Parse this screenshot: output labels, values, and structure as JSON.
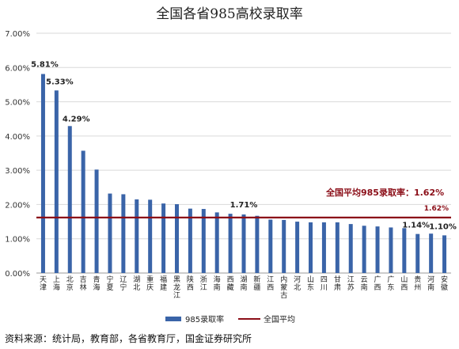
{
  "chart_data": {
    "type": "bar",
    "title": "全国各省985高校录取率",
    "categories": [
      "天津",
      "上海",
      "北京",
      "吉林",
      "青海",
      "宁夏",
      "辽宁",
      "湖北",
      "重庆",
      "福建",
      "黑龙江",
      "陕西",
      "浙江",
      "海南",
      "西藏",
      "湖南",
      "新疆",
      "江西",
      "内蒙古",
      "河北",
      "山东",
      "四川",
      "甘肃",
      "江苏",
      "云南",
      "广西",
      "广东",
      "山西",
      "贵州",
      "河南",
      "安徽"
    ],
    "series": [
      {
        "name": "985录取率",
        "values": [
          5.81,
          5.33,
          4.29,
          3.57,
          3.02,
          2.32,
          2.3,
          2.15,
          2.14,
          2.03,
          2.01,
          1.88,
          1.87,
          1.77,
          1.73,
          1.71,
          1.67,
          1.56,
          1.55,
          1.5,
          1.48,
          1.48,
          1.48,
          1.43,
          1.38,
          1.36,
          1.33,
          1.31,
          1.14,
          1.15,
          1.1
        ],
        "color": "#3a64a8"
      }
    ],
    "average": {
      "name": "全国平均",
      "value": 1.62,
      "color": "#8b0e18"
    },
    "ytick_labels": [
      "0.00%",
      "1.00%",
      "2.00%",
      "3.00%",
      "4.00%",
      "5.00%",
      "6.00%",
      "7.00%"
    ],
    "ylim": [
      0,
      7
    ],
    "grid": true,
    "legend_position": "bottom",
    "data_labels": [
      {
        "category": "天津",
        "text": "5.81%"
      },
      {
        "category": "上海",
        "text": "5.33%"
      },
      {
        "category": "北京",
        "text": "4.29%"
      },
      {
        "category": "湖南",
        "text": "1.71%"
      },
      {
        "category": "贵州",
        "text": "1.14%"
      },
      {
        "category": "安徽",
        "text": "1.10%"
      }
    ],
    "average_annotation": "全国平均985录取率：1.62%",
    "average_label": "1.62%"
  },
  "source_text": "资料来源：统计局，教育部，各省教育厅，国金证券研究所"
}
